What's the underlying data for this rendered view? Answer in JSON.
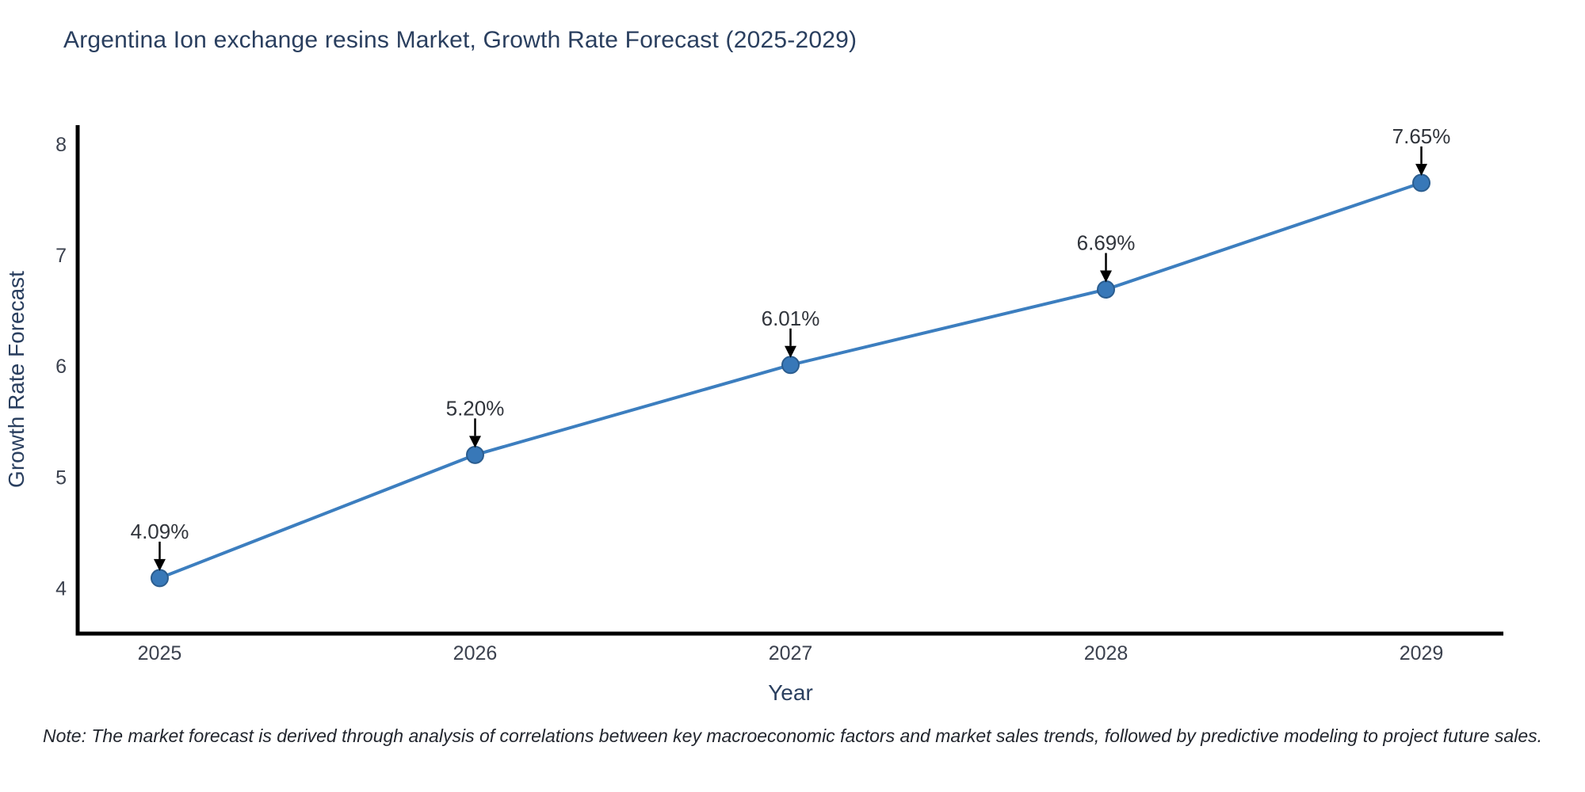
{
  "note": {
    "text": "Note: The market forecast is derived through analysis of correlations between key macroeconomic factors and market sales trends, followed by predictive modeling to project future sales."
  },
  "chart_data": {
    "type": "line",
    "title": "Argentina Ion exchange resins Market, Growth Rate Forecast (2025-2029)",
    "xlabel": "Year",
    "ylabel": "Growth Rate Forecast",
    "x": [
      2025,
      2026,
      2027,
      2028,
      2029
    ],
    "values": [
      4.09,
      5.2,
      6.01,
      6.69,
      7.65
    ],
    "point_labels": [
      "4.09%",
      "5.20%",
      "6.01%",
      "6.69%",
      "7.65%"
    ],
    "xticks": [
      2025,
      2026,
      2027,
      2028,
      2029
    ],
    "yticks": [
      4,
      5,
      6,
      7,
      8
    ],
    "xlim": [
      2024.74,
      2029.26
    ],
    "ylim": [
      3.59,
      8.17
    ],
    "grid": false,
    "legend": "none",
    "line_color": "#3c7ebf",
    "marker_color": "#3878b8",
    "marker_edge_color": "#2b5d8f",
    "axis_color": "#000000",
    "arrow_color": "#000000",
    "title_color": "#2a3f5f",
    "tick_color": "#3b414e",
    "point_label_color": "#30343b"
  }
}
